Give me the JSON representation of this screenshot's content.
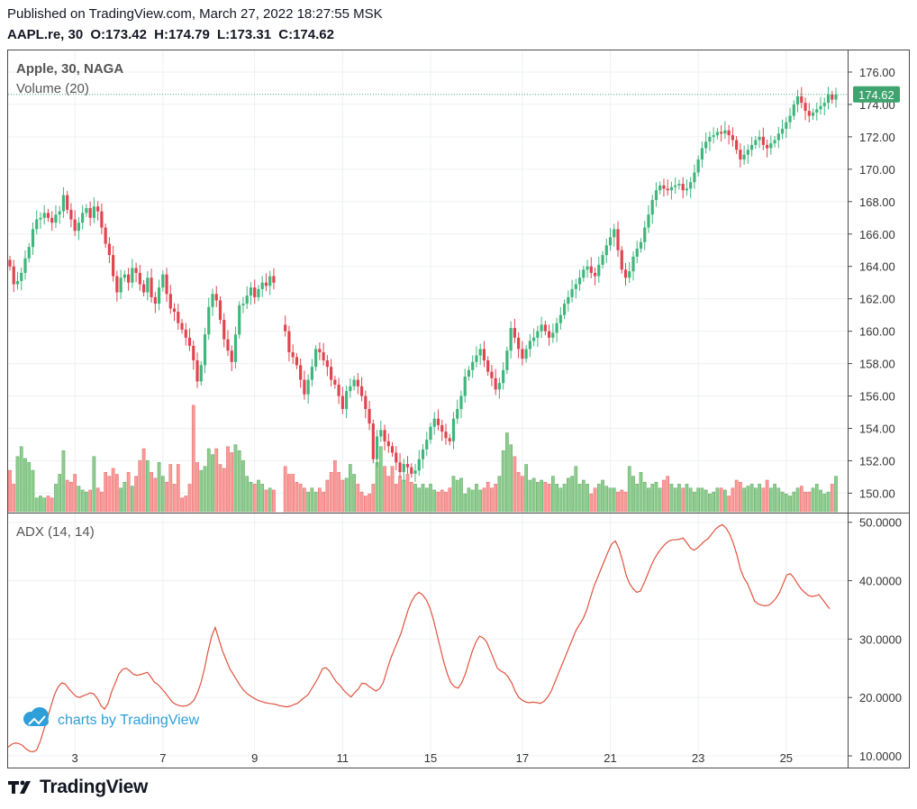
{
  "header": {
    "published": "Published on TradingView.com, March 27, 2022 18:27:55 MSK",
    "symbol": "AAPL.re, 30",
    "o_label": "O:",
    "o": "173.42",
    "h_label": "H:",
    "h": "174.79",
    "l_label": "L:",
    "l": "173.31",
    "c_label": "C:",
    "c": "174.62"
  },
  "price_pane": {
    "title": "Apple, 30, NAGA",
    "volume_label": "Volume (20)",
    "last_price_label": "174.62"
  },
  "adx_pane": {
    "title": "ADX (14, 14)"
  },
  "watermark": "charts by TradingView",
  "footer_logo": "TradingView",
  "colors": {
    "up": "#26a69a",
    "candle_up": "#3fb67c",
    "candle_down": "#e0444f",
    "vol_up": "#8dcd8f",
    "vol_down": "#fb9a98",
    "adx": "#e0533f",
    "last_price": "#3fa36f",
    "watermark": "#2e9fd8"
  },
  "chart_data": [
    {
      "type": "candlestick",
      "title": "Apple, 30, NAGA",
      "ylim": [
        148.8,
        177.0
      ],
      "y_ticks": [
        "150.00",
        "152.00",
        "154.00",
        "156.00",
        "158.00",
        "160.00",
        "162.00",
        "164.00",
        "166.00",
        "168.00",
        "170.00",
        "172.00",
        "174.00",
        "176.00"
      ],
      "x_ticks": [
        "3",
        "7",
        "9",
        "11",
        "15",
        "17",
        "21",
        "23",
        "25"
      ],
      "last_price": 174.62,
      "close": [
        164.0,
        162.9,
        163.1,
        163.6,
        164.5,
        165.2,
        166.3,
        166.9,
        167.0,
        167.3,
        167.0,
        166.7,
        167.2,
        167.4,
        168.4,
        167.5,
        166.9,
        166.2,
        166.7,
        167.3,
        167.6,
        167.0,
        167.7,
        167.4,
        166.4,
        165.4,
        164.7,
        163.4,
        162.4,
        163.3,
        163.5,
        163.0,
        163.9,
        163.6,
        162.9,
        162.4,
        163.3,
        162.1,
        161.7,
        162.7,
        163.5,
        162.3,
        161.4,
        161.2,
        160.5,
        160.1,
        159.6,
        159.1,
        158.2,
        156.9,
        157.9,
        159.8,
        161.5,
        162.3,
        161.9,
        160.7,
        159.5,
        158.8,
        158.1,
        159.8,
        161.6,
        161.7,
        162.2,
        162.7,
        162.1,
        162.6,
        163.0,
        162.8,
        163.4,
        163.0,
        null,
        null,
        160.0,
        158.7,
        158.4,
        157.9,
        157.0,
        156.1,
        157.0,
        157.8,
        158.9,
        158.7,
        158.2,
        157.8,
        157.0,
        156.7,
        156.0,
        155.2,
        156.3,
        156.6,
        157.0,
        156.6,
        156.0,
        155.2,
        154.3,
        152.1,
        153.5,
        153.9,
        153.2,
        152.9,
        152.5,
        151.9,
        151.3,
        151.8,
        151.6,
        151.2,
        151.4,
        152.1,
        152.7,
        153.3,
        154.1,
        154.6,
        154.2,
        153.8,
        153.4,
        153.2,
        154.6,
        155.2,
        156.0,
        157.2,
        157.6,
        158.1,
        158.5,
        158.9,
        158.2,
        157.5,
        157.1,
        156.4,
        156.8,
        157.6,
        158.8,
        160.2,
        159.6,
        158.9,
        158.3,
        158.9,
        159.4,
        159.6,
        160.0,
        160.4,
        160.0,
        159.6,
        159.9,
        160.5,
        161.0,
        161.7,
        162.1,
        162.6,
        162.9,
        163.3,
        163.8,
        164.0,
        163.6,
        163.4,
        164.1,
        164.7,
        165.3,
        165.8,
        166.3,
        165.0,
        163.8,
        163.3,
        163.7,
        164.6,
        165.1,
        165.5,
        166.4,
        167.2,
        168.1,
        168.7,
        169.0,
        168.8,
        168.7,
        168.9,
        169.0,
        169.1,
        168.7,
        168.8,
        169.2,
        169.8,
        170.6,
        171.3,
        171.7,
        172.0,
        172.1,
        172.3,
        172.2,
        172.4,
        172.1,
        171.8,
        171.2,
        170.6,
        170.9,
        171.2,
        171.5,
        171.8,
        172.0,
        171.5,
        171.3,
        171.6,
        171.8,
        172.2,
        172.5,
        172.9,
        173.3,
        174.0,
        174.5,
        174.1,
        173.6,
        173.3,
        173.5,
        173.7,
        173.9,
        174.1,
        174.6,
        174.3,
        174.62
      ],
      "volume_ylim": [
        0,
        320
      ],
      "volume": [
        105,
        70,
        140,
        165,
        135,
        125,
        105,
        35,
        40,
        35,
        40,
        35,
        70,
        95,
        155,
        80,
        75,
        95,
        65,
        55,
        50,
        55,
        140,
        60,
        50,
        100,
        90,
        110,
        95,
        60,
        75,
        100,
        65,
        90,
        130,
        160,
        130,
        100,
        85,
        125,
        90,
        75,
        120,
        70,
        120,
        35,
        40,
        70,
        270,
        125,
        105,
        115,
        160,
        145,
        160,
        120,
        110,
        165,
        150,
        170,
        155,
        130,
        90,
        75,
        70,
        80,
        70,
        55,
        60,
        55,
        0,
        0,
        115,
        95,
        95,
        75,
        70,
        60,
        50,
        60,
        50,
        60,
        50,
        80,
        100,
        130,
        100,
        80,
        85,
        120,
        95,
        70,
        50,
        40,
        45,
        70,
        125,
        165,
        115,
        90,
        115,
        70,
        90,
        80,
        95,
        75,
        70,
        60,
        70,
        60,
        70,
        55,
        50,
        55,
        50,
        60,
        90,
        80,
        85,
        45,
        60,
        55,
        70,
        55,
        60,
        75,
        60,
        70,
        90,
        155,
        200,
        170,
        140,
        100,
        90,
        120,
        80,
        85,
        75,
        80,
        75,
        70,
        90,
        70,
        60,
        70,
        85,
        90,
        115,
        70,
        80,
        70,
        45,
        60,
        70,
        80,
        65,
        60,
        60,
        50,
        55,
        50,
        115,
        90,
        70,
        100,
        75,
        60,
        70,
        75,
        60,
        80,
        90,
        70,
        60,
        70,
        60,
        70,
        60,
        50,
        60,
        60,
        55,
        45,
        50,
        60,
        60,
        55,
        40,
        60,
        80,
        75,
        60,
        65,
        70,
        60,
        70,
        60,
        80,
        60,
        70,
        60,
        50,
        45,
        40,
        50,
        60,
        65,
        50,
        50,
        60,
        70,
        55,
        45,
        50,
        70,
        90
      ]
    },
    {
      "type": "line",
      "title": "ADX (14, 14)",
      "ylim": [
        8.0,
        51.5
      ],
      "y_ticks": [
        "10.0000",
        "20.0000",
        "30.0000",
        "40.0000",
        "50.0000"
      ],
      "x_ticks": [
        "3",
        "7",
        "9",
        "11",
        "15",
        "17",
        "21",
        "23",
        "25"
      ],
      "values": [
        11.5,
        12.0,
        12.2,
        12.1,
        11.8,
        11.2,
        10.8,
        10.7,
        11.0,
        12.5,
        14.5,
        16.5,
        18.5,
        20.5,
        21.8,
        22.5,
        22.3,
        21.5,
        20.8,
        20.2,
        20.0,
        20.3,
        20.5,
        20.8,
        20.6,
        19.8,
        18.6,
        18.0,
        19.0,
        21.0,
        22.5,
        24.0,
        24.8,
        25.0,
        24.6,
        24.0,
        23.8,
        23.9,
        24.1,
        24.3,
        23.5,
        22.6,
        22.2,
        21.5,
        20.8,
        20.0,
        19.2,
        18.8,
        18.6,
        18.5,
        18.6,
        18.9,
        19.5,
        20.8,
        22.5,
        25.0,
        28.0,
        30.5,
        32.0,
        30.0,
        28.0,
        26.5,
        25.0,
        24.0,
        23.0,
        22.0,
        21.2,
        20.6,
        20.2,
        19.8,
        19.5,
        19.3,
        19.1,
        19.0,
        18.9,
        18.8,
        18.6,
        18.5,
        18.4,
        18.5,
        18.8,
        19.0,
        19.5,
        20.0,
        20.5,
        21.5,
        22.5,
        23.6,
        24.9,
        25.1,
        24.5,
        23.5,
        22.6,
        22.0,
        21.2,
        20.6,
        20.1,
        20.8,
        21.4,
        22.4,
        22.4,
        21.9,
        21.5,
        21.1,
        21.5,
        22.5,
        24.5,
        26.5,
        28.0,
        29.5,
        31.0,
        33.0,
        35.0,
        36.5,
        37.5,
        38.0,
        37.6,
        36.8,
        35.5,
        33.5,
        31.0,
        28.5,
        26.0,
        24.0,
        22.5,
        21.8,
        21.6,
        22.5,
        24.0,
        26.0,
        28.0,
        29.5,
        30.5,
        30.2,
        29.5,
        28.0,
        26.5,
        25.0,
        24.5,
        24.2,
        23.5,
        22.5,
        21.0,
        20.0,
        19.5,
        19.2,
        19.1,
        19.2,
        19.1,
        19.0,
        19.3,
        20.0,
        21.0,
        22.5,
        24.0,
        25.5,
        27.0,
        28.5,
        30.0,
        31.5,
        32.5,
        33.5,
        35.0,
        37.0,
        39.0,
        40.5,
        42.0,
        43.5,
        45.0,
        46.3,
        46.8,
        45.5,
        43.5,
        41.0,
        39.5,
        38.6,
        38.0,
        38.2,
        39.5,
        41.0,
        42.5,
        43.8,
        44.8,
        45.6,
        46.3,
        46.8,
        47.0,
        47.0,
        47.1,
        47.3,
        46.5,
        45.6,
        45.2,
        45.6,
        46.2,
        46.8,
        47.2,
        48.0,
        48.8,
        49.3,
        49.6,
        49.0,
        48.0,
        46.5,
        44.5,
        42.0,
        40.5,
        39.5,
        38.0,
        36.5,
        36.0,
        35.8,
        35.7,
        35.8,
        36.3,
        37.0,
        38.0,
        39.5,
        41.0,
        41.2,
        40.5,
        39.5,
        38.6,
        38.0,
        37.5,
        37.3,
        37.4,
        37.6,
        36.8,
        36.0,
        35.2
      ]
    }
  ]
}
